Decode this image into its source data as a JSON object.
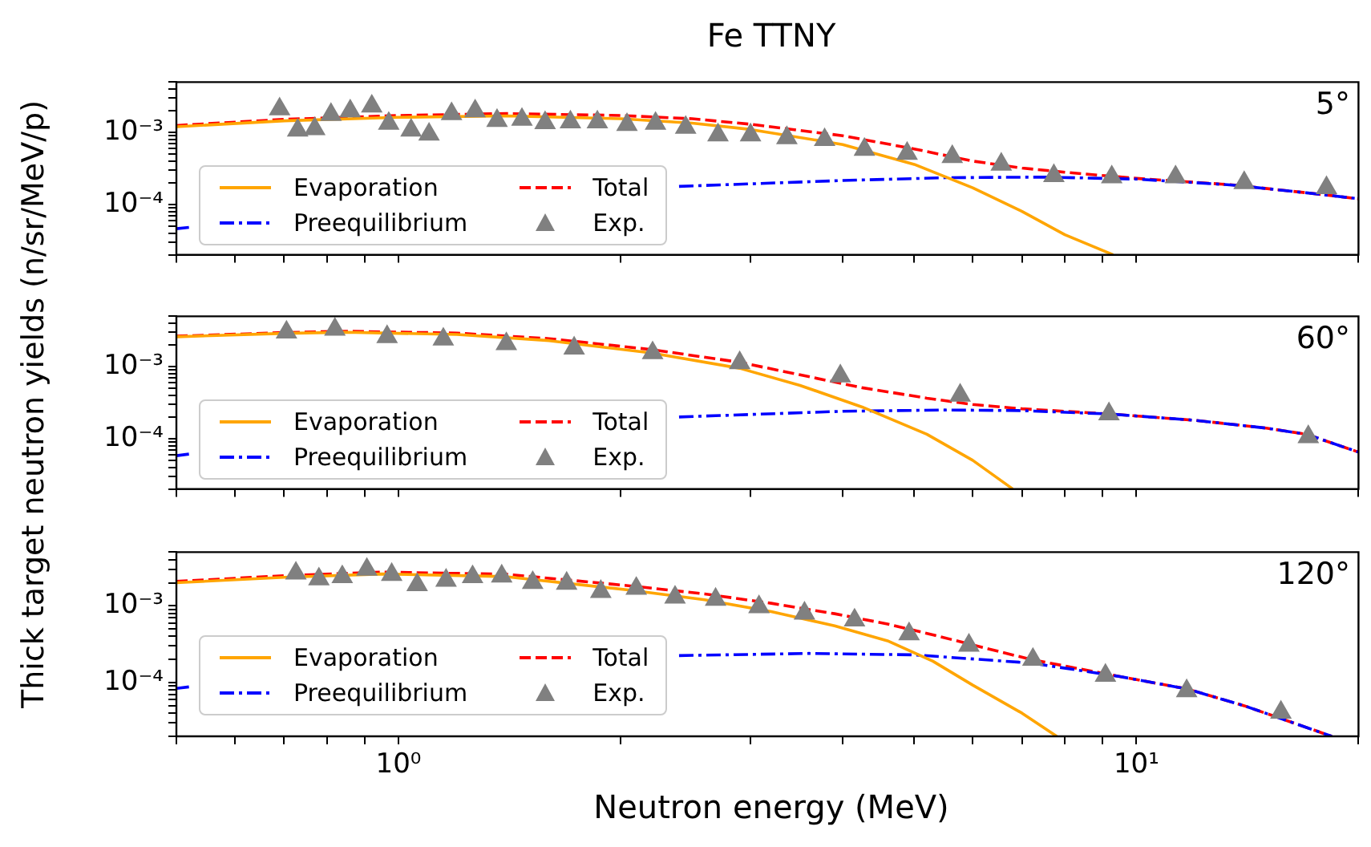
{
  "chart_data": [
    {
      "type": "line",
      "title": "Fe TTNY",
      "log": "xy",
      "xlim": [
        0.5,
        20
      ],
      "ylim": [
        2e-05,
        0.005
      ],
      "tick_labels": "y",
      "legend": "bottom left",
      "annotations": [
        "5°"
      ],
      "xticks": [
        {
          "value": 0.5,
          "label": null
        },
        {
          "value": 0.6,
          "label": null
        },
        {
          "value": 0.7,
          "label": null
        },
        {
          "value": 0.8,
          "label": null
        },
        {
          "value": 0.9,
          "label": null
        },
        {
          "value": 1,
          "label": null
        },
        {
          "value": 2,
          "label": null
        },
        {
          "value": 3,
          "label": null
        },
        {
          "value": 4,
          "label": null
        },
        {
          "value": 5,
          "label": null
        },
        {
          "value": 6,
          "label": null
        },
        {
          "value": 7,
          "label": null
        },
        {
          "value": 8,
          "label": null
        },
        {
          "value": 9,
          "label": null
        },
        {
          "value": 10,
          "label": null
        },
        {
          "value": 20,
          "label": null
        }
      ],
      "yticks": [
        {
          "value": 2e-05,
          "label": null
        },
        {
          "value": 3e-05,
          "label": null
        },
        {
          "value": 4e-05,
          "label": null
        },
        {
          "value": 5e-05,
          "label": null
        },
        {
          "value": 6e-05,
          "label": null
        },
        {
          "value": 7e-05,
          "label": null
        },
        {
          "value": 8e-05,
          "label": null
        },
        {
          "value": 9e-05,
          "label": null
        },
        {
          "value": 0.0001,
          "label": "10⁻⁴"
        },
        {
          "value": 0.0002,
          "label": null
        },
        {
          "value": 0.0003,
          "label": null
        },
        {
          "value": 0.0004,
          "label": null
        },
        {
          "value": 0.0005,
          "label": null
        },
        {
          "value": 0.0006,
          "label": null
        },
        {
          "value": 0.0007,
          "label": null
        },
        {
          "value": 0.0008,
          "label": null
        },
        {
          "value": 0.0009,
          "label": null
        },
        {
          "value": 0.001,
          "label": "10⁻³"
        },
        {
          "value": 0.002,
          "label": null
        },
        {
          "value": 0.003,
          "label": null
        },
        {
          "value": 0.004,
          "label": null
        },
        {
          "value": 0.005,
          "label": null
        }
      ],
      "series": [
        {
          "name": "Evaporation",
          "type": "line",
          "color": "#ffa500",
          "line_style": "solid",
          "x": [
            0.5,
            0.7,
            1,
            1.4,
            2,
            2.5,
            3,
            4,
            5,
            6,
            7,
            8,
            9.3
          ],
          "values": [
            0.0012,
            0.00145,
            0.00162,
            0.0017,
            0.00155,
            0.00135,
            0.0011,
            0.00068,
            0.00036,
            0.00017,
            8e-05,
            3.8e-05,
            2e-05
          ]
        },
        {
          "name": "Preequilibrium",
          "type": "line",
          "color": "#0000ff",
          "line_style": "dashdot",
          "x": [
            0.5,
            0.52,
            1,
            1.5,
            2.4,
            4,
            5.5,
            7.5,
            10,
            13.5,
            17,
            20
          ],
          "values": [
            4.6e-05,
            4.8e-05,
            null,
            null,
            0.000178,
            0.000215,
            0.000235,
            0.00024,
            0.000225,
            0.000186,
            0.000145,
            0.00012
          ]
        },
        {
          "name": "Total",
          "type": "line",
          "color": "#ff0000",
          "line_style": "dashed",
          "x": [
            0.5,
            0.7,
            1,
            1.4,
            2,
            2.5,
            3,
            4,
            5,
            6,
            7,
            8,
            10,
            13.5,
            17,
            20
          ],
          "values": [
            0.00125,
            0.00152,
            0.00172,
            0.00183,
            0.00172,
            0.00155,
            0.0013,
            0.0009,
            0.00059,
            0.0004,
            0.00032,
            0.00028,
            0.00023,
            0.000187,
            0.000145,
            0.00012
          ]
        },
        {
          "name": "Exp.",
          "type": "scatter",
          "color": "#808080",
          "marker": "triangle",
          "x": [
            0.69,
            0.73,
            0.77,
            0.81,
            0.86,
            0.92,
            0.97,
            1.04,
            1.1,
            1.18,
            1.27,
            1.36,
            1.47,
            1.58,
            1.71,
            1.86,
            2.04,
            2.23,
            2.45,
            2.71,
            3,
            3.36,
            3.78,
            4.28,
            4.89,
            5.63,
            6.56,
            7.73,
            9.26,
            11.3,
            14,
            18.1
          ],
          "values": [
            0.00211,
            0.00107,
            0.00112,
            0.00177,
            0.00198,
            0.00231,
            0.00133,
            0.00107,
            0.00094,
            0.00181,
            0.00198,
            0.00146,
            0.00151,
            0.00136,
            0.00139,
            0.00139,
            0.00128,
            0.00133,
            0.00117,
            0.00092,
            0.00092,
            0.00084,
            0.00079,
            0.00058,
            0.00051,
            0.00046,
            0.00036,
            0.00025,
            0.00024,
            0.00024,
            0.0002,
            0.00017
          ]
        }
      ]
    },
    {
      "type": "line",
      "ylabel": "Thick target neutron yields (n/sr/MeV/p)",
      "log": "xy",
      "xlim": [
        0.5,
        20
      ],
      "ylim": [
        2e-05,
        0.005
      ],
      "tick_labels": "y",
      "legend": "bottom left",
      "annotations": [
        "60°"
      ],
      "xticks": [
        {
          "value": 0.5,
          "label": null
        },
        {
          "value": 0.6,
          "label": null
        },
        {
          "value": 0.7,
          "label": null
        },
        {
          "value": 0.8,
          "label": null
        },
        {
          "value": 0.9,
          "label": null
        },
        {
          "value": 1,
          "label": null
        },
        {
          "value": 2,
          "label": null
        },
        {
          "value": 3,
          "label": null
        },
        {
          "value": 4,
          "label": null
        },
        {
          "value": 5,
          "label": null
        },
        {
          "value": 6,
          "label": null
        },
        {
          "value": 7,
          "label": null
        },
        {
          "value": 8,
          "label": null
        },
        {
          "value": 9,
          "label": null
        },
        {
          "value": 10,
          "label": null
        },
        {
          "value": 20,
          "label": null
        }
      ],
      "yticks": [
        {
          "value": 2e-05,
          "label": null
        },
        {
          "value": 3e-05,
          "label": null
        },
        {
          "value": 4e-05,
          "label": null
        },
        {
          "value": 5e-05,
          "label": null
        },
        {
          "value": 6e-05,
          "label": null
        },
        {
          "value": 7e-05,
          "label": null
        },
        {
          "value": 8e-05,
          "label": null
        },
        {
          "value": 9e-05,
          "label": null
        },
        {
          "value": 0.0001,
          "label": "10⁻⁴"
        },
        {
          "value": 0.0002,
          "label": null
        },
        {
          "value": 0.0003,
          "label": null
        },
        {
          "value": 0.0004,
          "label": null
        },
        {
          "value": 0.0005,
          "label": null
        },
        {
          "value": 0.0006,
          "label": null
        },
        {
          "value": 0.0007,
          "label": null
        },
        {
          "value": 0.0008,
          "label": null
        },
        {
          "value": 0.0009,
          "label": null
        },
        {
          "value": 0.001,
          "label": "10⁻³"
        },
        {
          "value": 0.002,
          "label": null
        },
        {
          "value": 0.003,
          "label": null
        },
        {
          "value": 0.004,
          "label": null
        },
        {
          "value": 0.005,
          "label": null
        }
      ],
      "series": [
        {
          "name": "Evaporation",
          "type": "line",
          "color": "#ffa500",
          "line_style": "solid",
          "x": [
            0.5,
            0.7,
            0.85,
            1.2,
            1.6,
            2.2,
            2.9,
            3.5,
            4.25,
            5.2,
            6,
            6.8
          ],
          "values": [
            0.0026,
            0.0029,
            0.003,
            0.0028,
            0.0023,
            0.00155,
            0.00095,
            0.00055,
            0.000275,
            0.000115,
            5e-05,
            2e-05
          ]
        },
        {
          "name": "Preequilibrium",
          "type": "line",
          "color": "#0000ff",
          "line_style": "dashdot",
          "x": [
            0.5,
            0.52,
            1,
            1.5,
            2.4,
            4,
            5.5,
            7,
            9.2,
            12,
            15,
            17,
            20
          ],
          "values": [
            5.8e-05,
            6.1e-05,
            null,
            null,
            0.0002,
            0.00024,
            0.00025,
            0.000245,
            0.00022,
            0.00018,
            0.00014,
            0.000115,
            6.5e-05
          ]
        },
        {
          "name": "Total",
          "type": "line",
          "color": "#ff0000",
          "line_style": "dashed",
          "x": [
            0.5,
            0.7,
            0.85,
            1.2,
            1.6,
            2.2,
            2.9,
            3.5,
            4.25,
            5.2,
            6,
            7,
            9.2,
            12,
            15,
            17,
            20
          ],
          "values": [
            0.00265,
            0.00298,
            0.0031,
            0.00293,
            0.00245,
            0.00173,
            0.00115,
            0.00077,
            0.00051,
            0.000365,
            0.000298,
            0.00026,
            0.00022,
            0.00018,
            0.00014,
            0.000115,
            6.5e-05
          ]
        },
        {
          "name": "Exp.",
          "type": "scatter",
          "color": "#808080",
          "marker": "triangle",
          "x": [
            0.705,
            0.82,
            0.965,
            1.15,
            1.4,
            1.73,
            2.21,
            2.9,
            3.97,
            5.77,
            9.18,
            17.1
          ],
          "values": [
            0.003,
            0.0033,
            0.0026,
            0.0024,
            0.00207,
            0.0018,
            0.00155,
            0.00113,
            0.00074,
            0.0004,
            0.00022,
            0.000106
          ]
        }
      ]
    },
    {
      "type": "line",
      "xlabel": "Neutron energy (MeV)",
      "log": "xy",
      "xlim": [
        0.5,
        20
      ],
      "ylim": [
        2e-05,
        0.005
      ],
      "legend": "bottom left",
      "annotations": [
        "120°"
      ],
      "xticks": [
        {
          "value": 0.5,
          "label": null
        },
        {
          "value": 0.6,
          "label": null
        },
        {
          "value": 0.7,
          "label": null
        },
        {
          "value": 0.8,
          "label": null
        },
        {
          "value": 0.9,
          "label": null
        },
        {
          "value": 1,
          "label": "10⁰"
        },
        {
          "value": 2,
          "label": null
        },
        {
          "value": 3,
          "label": null
        },
        {
          "value": 4,
          "label": null
        },
        {
          "value": 5,
          "label": null
        },
        {
          "value": 6,
          "label": null
        },
        {
          "value": 7,
          "label": null
        },
        {
          "value": 8,
          "label": null
        },
        {
          "value": 9,
          "label": null
        },
        {
          "value": 10,
          "label": "10¹"
        },
        {
          "value": 20,
          "label": null
        }
      ],
      "yticks": [
        {
          "value": 2e-05,
          "label": null
        },
        {
          "value": 3e-05,
          "label": null
        },
        {
          "value": 4e-05,
          "label": null
        },
        {
          "value": 5e-05,
          "label": null
        },
        {
          "value": 6e-05,
          "label": null
        },
        {
          "value": 7e-05,
          "label": null
        },
        {
          "value": 8e-05,
          "label": null
        },
        {
          "value": 9e-05,
          "label": null
        },
        {
          "value": 0.0001,
          "label": "10⁻⁴"
        },
        {
          "value": 0.0002,
          "label": null
        },
        {
          "value": 0.0003,
          "label": null
        },
        {
          "value": 0.0004,
          "label": null
        },
        {
          "value": 0.0005,
          "label": null
        },
        {
          "value": 0.0006,
          "label": null
        },
        {
          "value": 0.0007,
          "label": null
        },
        {
          "value": 0.0008,
          "label": null
        },
        {
          "value": 0.0009,
          "label": null
        },
        {
          "value": 0.001,
          "label": "10⁻³"
        },
        {
          "value": 0.002,
          "label": null
        },
        {
          "value": 0.003,
          "label": null
        },
        {
          "value": 0.004,
          "label": null
        },
        {
          "value": 0.005,
          "label": null
        }
      ],
      "series": [
        {
          "name": "Evaporation",
          "type": "line",
          "color": "#ffa500",
          "line_style": "solid",
          "x": [
            0.5,
            0.7,
            0.95,
            1.4,
            2.06,
            2.6,
            3.2,
            3.9,
            4.6,
            5.3,
            6,
            7,
            7.8
          ],
          "values": [
            0.002,
            0.00235,
            0.0026,
            0.0024,
            0.0016,
            0.0012,
            0.00084,
            0.00055,
            0.00035,
            0.00019,
            9.3e-05,
            4e-05,
            2e-05
          ]
        },
        {
          "name": "Preequilibrium",
          "type": "line",
          "color": "#0000ff",
          "line_style": "dashdot",
          "x": [
            0.5,
            0.52,
            1,
            1.6,
            2.4,
            3.6,
            5,
            7.2,
            9.5,
            11.7,
            14,
            16,
            18.4
          ],
          "values": [
            8.4e-05,
            8.8e-05,
            null,
            null,
            0.000225,
            0.00024,
            0.00023,
            0.00018,
            0.00012,
            8.3e-05,
            5e-05,
            3.2e-05,
            2e-05
          ]
        },
        {
          "name": "Total",
          "type": "line",
          "color": "#ff0000",
          "line_style": "dashed",
          "x": [
            0.5,
            0.7,
            0.95,
            1.4,
            2.06,
            2.6,
            3.2,
            3.9,
            4.6,
            5.3,
            6,
            7.2,
            9.5,
            11.7,
            14,
            16,
            18.4
          ],
          "values": [
            0.00208,
            0.00247,
            0.00275,
            0.00258,
            0.00182,
            0.00143,
            0.00108,
            0.00079,
            0.00058,
            0.00042,
            0.00031,
            0.0002,
            0.00012,
            8.3e-05,
            5e-05,
            3.2e-05,
            2e-05
          ]
        },
        {
          "name": "Exp.",
          "type": "scatter",
          "color": "#808080",
          "marker": "triangle",
          "x": [
            0.726,
            0.78,
            0.839,
            0.906,
            0.979,
            1.06,
            1.16,
            1.26,
            1.38,
            1.52,
            1.69,
            1.88,
            2.1,
            2.37,
            2.69,
            3.08,
            3.55,
            4.15,
            4.92,
            5.93,
            7.24,
            9.08,
            11.7,
            15.7
          ],
          "values": [
            0.00265,
            0.00223,
            0.00238,
            0.00297,
            0.00255,
            0.00188,
            0.00214,
            0.00238,
            0.00243,
            0.002,
            0.00196,
            0.00153,
            0.00168,
            0.00129,
            0.00121,
            0.00097,
            0.0008,
            0.00065,
            0.00043,
            0.000305,
            0.0002,
            0.000124,
            7.8e-05,
            4.1e-05
          ]
        }
      ]
    }
  ]
}
